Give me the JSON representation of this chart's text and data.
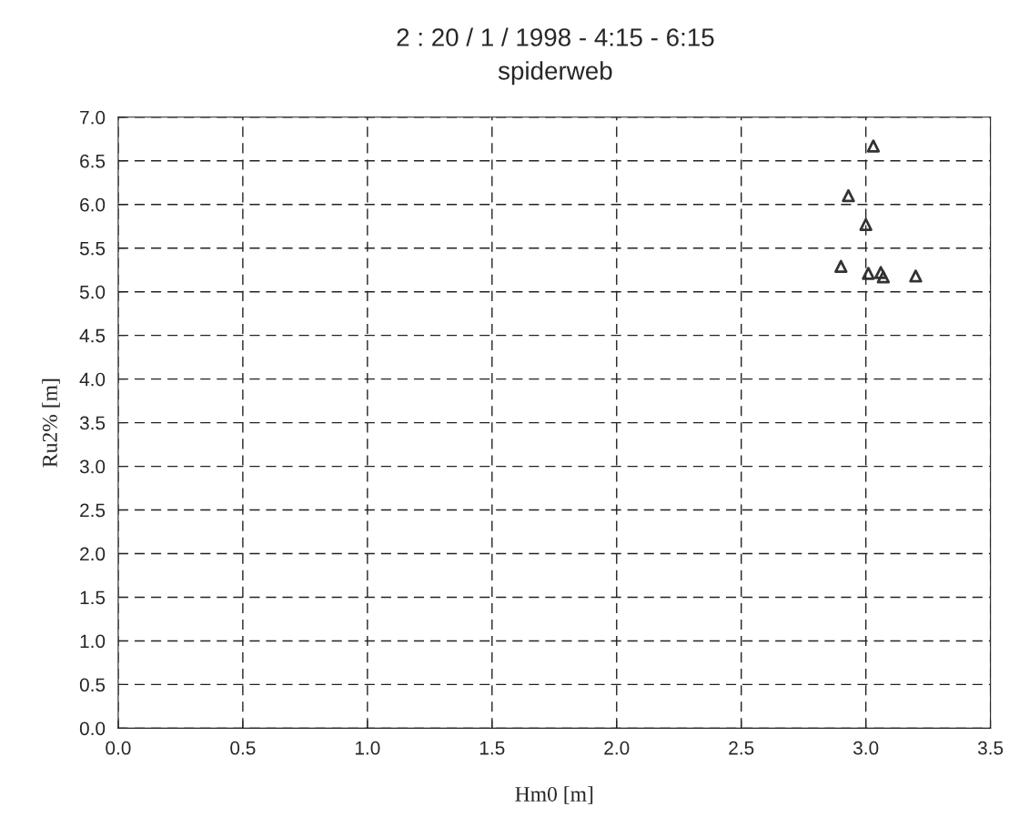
{
  "chart_data": {
    "type": "scatter",
    "title": "2 : 20 / 1 / 1998 - 4:15 - 6:15",
    "subtitle": "spiderweb",
    "xlabel": "Hm0 [m]",
    "ylabel": "Ru2% [m]",
    "x": [
      3.03,
      2.93,
      3.0,
      2.9,
      3.01,
      3.06,
      3.07,
      3.2
    ],
    "values": [
      6.67,
      6.1,
      5.77,
      5.29,
      5.21,
      5.22,
      5.17,
      5.18
    ],
    "color": "#333333",
    "marker": "triangle",
    "xlim": [
      0,
      3.5
    ],
    "xticks": [
      {
        "value": 0,
        "label": "0.0"
      },
      0.5,
      {
        "value": 1,
        "label": "1.0"
      },
      1.5,
      {
        "value": 2,
        "label": "2.0"
      },
      2.5,
      {
        "value": 3,
        "label": "3.0"
      },
      3.5
    ],
    "ylim": [
      0,
      7
    ],
    "yticks": [
      {
        "value": 0,
        "label": "0.0"
      },
      0.5,
      {
        "value": 1,
        "label": "1.0"
      },
      1.5,
      {
        "value": 2,
        "label": "2.0"
      },
      2.5,
      {
        "value": 3,
        "label": "3.0"
      },
      3.5,
      {
        "value": 4,
        "label": "4.0"
      },
      4.5,
      {
        "value": 5,
        "label": "5.0"
      },
      5.5,
      {
        "value": 6,
        "label": "6.0"
      },
      6.5,
      {
        "value": 7,
        "label": "7.0"
      }
    ],
    "grid": true
  }
}
